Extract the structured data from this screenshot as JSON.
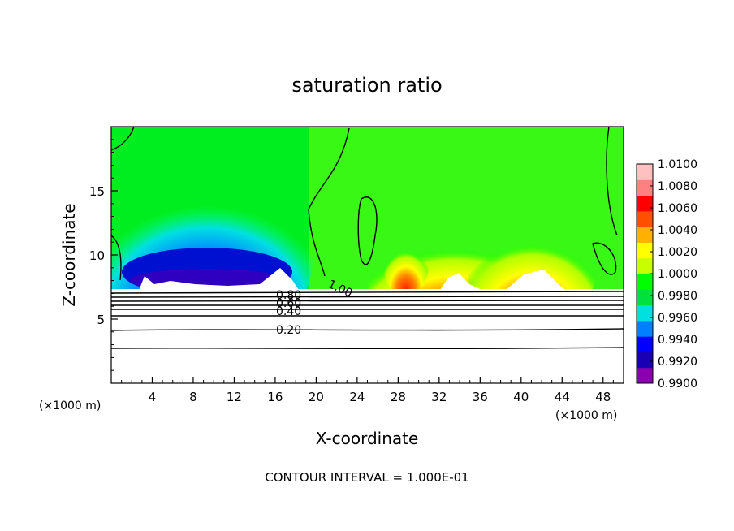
{
  "chart_data": {
    "type": "heatmap",
    "title": "saturation ratio",
    "xlabel": "X-coordinate",
    "ylabel": "Z-coordinate",
    "x_units": "(×1000 m)",
    "y_units": "(×1000 m)",
    "xlim": [
      0,
      50
    ],
    "ylim": [
      0,
      20
    ],
    "x_ticks": [
      4,
      8,
      12,
      16,
      20,
      24,
      28,
      32,
      36,
      40,
      44,
      48
    ],
    "y_ticks": [
      5,
      10,
      15
    ],
    "footer": "CONTOUR INTERVAL = 1.000E-01",
    "colorbar": {
      "min": 0.99,
      "max": 1.01,
      "labels": [
        "1.0100",
        "1.0080",
        "1.0060",
        "1.0040",
        "1.0020",
        "1.0000",
        "0.9980",
        "0.9960",
        "0.9940",
        "0.9920",
        "0.9900"
      ],
      "colors": [
        "#8a00b0",
        "#1a00b4",
        "#0000ff",
        "#0080ff",
        "#00e0e0",
        "#00e040",
        "#00ff00",
        "#c8ff00",
        "#ffff00",
        "#ffb000",
        "#ff5000",
        "#ff0000",
        "#ff8080",
        "#ffc0c0"
      ]
    },
    "contour_labels": [
      "0.80",
      "0.60",
      "0.40",
      "0.20",
      "1.00"
    ],
    "contour_levels": [
      0.2,
      0.4,
      0.6,
      0.8,
      1.0
    ]
  }
}
